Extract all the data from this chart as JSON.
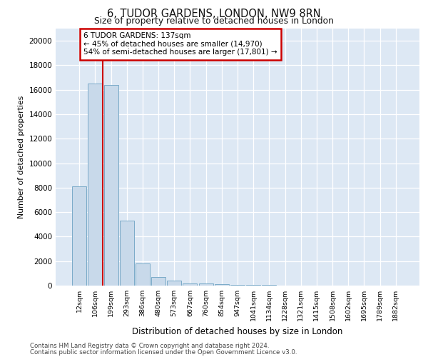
{
  "title": "6, TUDOR GARDENS, LONDON, NW9 8RN",
  "subtitle": "Size of property relative to detached houses in London",
  "xlabel": "Distribution of detached houses by size in London",
  "ylabel": "Number of detached properties",
  "categories": [
    "12sqm",
    "106sqm",
    "199sqm",
    "293sqm",
    "386sqm",
    "480sqm",
    "573sqm",
    "667sqm",
    "760sqm",
    "854sqm",
    "947sqm",
    "1041sqm",
    "1134sqm",
    "1228sqm",
    "1321sqm",
    "1415sqm",
    "1508sqm",
    "1602sqm",
    "1695sqm",
    "1789sqm",
    "1882sqm"
  ],
  "values": [
    8100,
    16500,
    16400,
    5300,
    1800,
    700,
    420,
    200,
    150,
    100,
    70,
    50,
    30,
    20,
    15,
    10,
    8,
    6,
    5,
    4,
    3
  ],
  "bar_color": "#c8d9ea",
  "bar_edge_color": "#7aaac8",
  "vline_color": "#cc0000",
  "vline_pos": 1.5,
  "annotation_text": "6 TUDOR GARDENS: 137sqm\n← 45% of detached houses are smaller (14,970)\n54% of semi-detached houses are larger (17,801) →",
  "annotation_box_facecolor": "#ffffff",
  "annotation_box_edgecolor": "#cc0000",
  "background_color": "#dde8f4",
  "footer_line1": "Contains HM Land Registry data © Crown copyright and database right 2024.",
  "footer_line2": "Contains public sector information licensed under the Open Government Licence v3.0.",
  "ylim": [
    0,
    21000
  ],
  "yticks": [
    0,
    2000,
    4000,
    6000,
    8000,
    10000,
    12000,
    14000,
    16000,
    18000,
    20000
  ]
}
